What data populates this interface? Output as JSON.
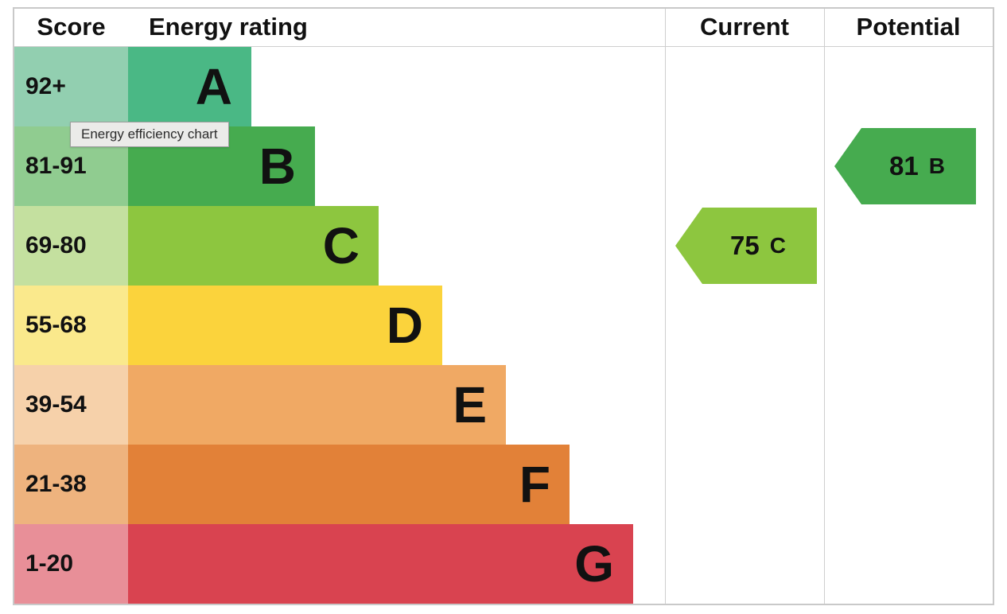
{
  "header": {
    "score": "Score",
    "energy_rating": "Energy rating",
    "current": "Current",
    "potential": "Potential"
  },
  "tooltip": "Energy efficiency chart",
  "bands": [
    {
      "score": "92+",
      "letter": "A",
      "bar_color": "#4ab885",
      "score_color": "#92cfb0"
    },
    {
      "score": "81-91",
      "letter": "B",
      "bar_color": "#46ab4f",
      "score_color": "#90cc90"
    },
    {
      "score": "69-80",
      "letter": "C",
      "bar_color": "#8dc63f",
      "score_color": "#c4e09f"
    },
    {
      "score": "55-68",
      "letter": "D",
      "bar_color": "#fbd33c",
      "score_color": "#fae98c"
    },
    {
      "score": "39-54",
      "letter": "E",
      "bar_color": "#f0a964",
      "score_color": "#f6d1aa"
    },
    {
      "score": "21-38",
      "letter": "F",
      "bar_color": "#e28138",
      "score_color": "#eeb37e"
    },
    {
      "score": "1-20",
      "letter": "G",
      "bar_color": "#d94350",
      "score_color": "#e88f98"
    }
  ],
  "current": {
    "value": "75",
    "letter": "C",
    "color": "#8dc63f"
  },
  "potential": {
    "value": "81",
    "letter": "B",
    "color": "#46ab4f"
  },
  "chart_data": {
    "type": "bar",
    "title": "Energy efficiency chart",
    "columns": [
      "Score",
      "Energy rating",
      "Current",
      "Potential"
    ],
    "categories": [
      "A",
      "B",
      "C",
      "D",
      "E",
      "F",
      "G"
    ],
    "score_ranges": [
      "92+",
      "81-91",
      "69-80",
      "55-68",
      "39-54",
      "21-38",
      "1-20"
    ],
    "bar_lengths_relative": [
      1,
      2,
      3,
      4,
      5,
      6,
      7
    ],
    "band_colors": [
      "#4ab885",
      "#46ab4f",
      "#8dc63f",
      "#fbd33c",
      "#f0a964",
      "#e28138",
      "#d94350"
    ],
    "current": {
      "score": 75,
      "rating": "C"
    },
    "potential": {
      "score": 81,
      "rating": "B"
    },
    "legend_position": "none",
    "grid": false
  }
}
